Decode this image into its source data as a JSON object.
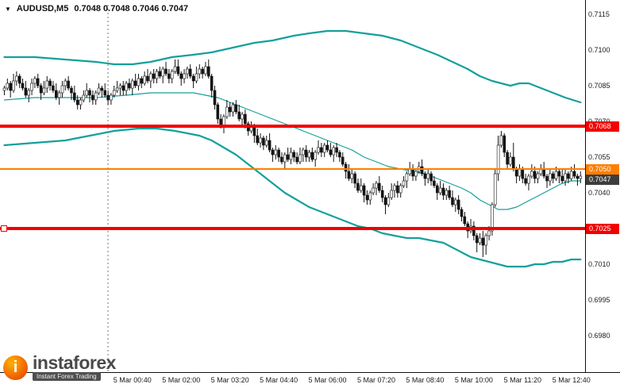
{
  "header": {
    "symbol": "AUDUSD,M5",
    "ohlc": "0.7048 0.7048 0.7046 0.7047"
  },
  "watermark": {
    "icon_letter": "i",
    "brand": "instaforex",
    "tagline": "Instant Forex Trading"
  },
  "chart_data": {
    "type": "candlestick",
    "title": "AUDUSD,M5",
    "timeframe_minutes": 5,
    "visible_price_range": [
      0.6965,
      0.7121
    ],
    "price_ticks": [
      "0.7115",
      "0.7100",
      "0.7085",
      "0.7070",
      "0.7055",
      "0.7040",
      "0.7025",
      "0.7010",
      "0.6995",
      "0.6980"
    ],
    "time_ticks": [
      {
        "label": "5 Mar 00:40",
        "i": 42
      },
      {
        "label": "5 Mar 02:00",
        "i": 58
      },
      {
        "label": "5 Mar 03:20",
        "i": 74
      },
      {
        "label": "5 Mar 04:40",
        "i": 90
      },
      {
        "label": "5 Mar 06:00",
        "i": 106
      },
      {
        "label": "5 Mar 07:20",
        "i": 122
      },
      {
        "label": "5 Mar 08:40",
        "i": 138
      },
      {
        "label": "5 Mar 10:00",
        "i": 154
      },
      {
        "label": "5 Mar 11:20",
        "i": 170
      },
      {
        "label": "5 Mar 12:40",
        "i": 186
      }
    ],
    "open_first": 0.7083,
    "closes": [
      0.7084,
      0.7086,
      0.7083,
      0.7087,
      0.7089,
      0.7086,
      0.7084,
      0.7081,
      0.7083,
      0.7086,
      0.7088,
      0.7085,
      0.7082,
      0.7084,
      0.7087,
      0.7085,
      0.7083,
      0.708,
      0.7082,
      0.7085,
      0.7087,
      0.7084,
      0.7082,
      0.7079,
      0.7077,
      0.7079,
      0.7081,
      0.7083,
      0.7081,
      0.7079,
      0.7082,
      0.7084,
      0.7083,
      0.7081,
      0.7079,
      0.7081,
      0.7083,
      0.7084,
      0.7085,
      0.7083,
      0.7086,
      0.7084,
      0.7087,
      0.7085,
      0.7088,
      0.7086,
      0.7089,
      0.7087,
      0.709,
      0.7088,
      0.7091,
      0.7089,
      0.7092,
      0.709,
      0.7088,
      0.7091,
      0.7093,
      0.709,
      0.7088,
      0.709,
      0.7092,
      0.7089,
      0.7087,
      0.709,
      0.7092,
      0.709,
      0.7093,
      0.7089,
      0.7083,
      0.7077,
      0.7071,
      0.7068,
      0.7072,
      0.7076,
      0.7074,
      0.7077,
      0.7074,
      0.7071,
      0.7073,
      0.7069,
      0.7066,
      0.7068,
      0.7064,
      0.7061,
      0.7063,
      0.706,
      0.7062,
      0.7058,
      0.7056,
      0.7058,
      0.7055,
      0.7053,
      0.7056,
      0.7054,
      0.7057,
      0.7055,
      0.7053,
      0.7056,
      0.7058,
      0.7055,
      0.7057,
      0.7054,
      0.7057,
      0.7059,
      0.7057,
      0.706,
      0.7058,
      0.7056,
      0.7059,
      0.7057,
      0.7055,
      0.7052,
      0.7049,
      0.7046,
      0.7048,
      0.7044,
      0.7041,
      0.7043,
      0.7039,
      0.7037,
      0.704,
      0.7042,
      0.7044,
      0.7041,
      0.7038,
      0.7035,
      0.7038,
      0.7041,
      0.7043,
      0.704,
      0.7043,
      0.7045,
      0.7048,
      0.705,
      0.7047,
      0.7049,
      0.7051,
      0.7048,
      0.7046,
      0.7048,
      0.7045,
      0.7043,
      0.704,
      0.7042,
      0.7039,
      0.7041,
      0.7038,
      0.7035,
      0.7037,
      0.7033,
      0.703,
      0.7027,
      0.7024,
      0.7026,
      0.7022,
      0.7019,
      0.7021,
      0.7018,
      0.7022,
      0.7024,
      0.7035,
      0.7048,
      0.706,
      0.7064,
      0.7057,
      0.7052,
      0.7055,
      0.705,
      0.7047,
      0.705,
      0.7046,
      0.7044,
      0.7047,
      0.7049,
      0.7046,
      0.7048,
      0.705,
      0.7047,
      0.7045,
      0.7048,
      0.7046,
      0.7049,
      0.7047,
      0.7045,
      0.7048,
      0.7046,
      0.7049,
      0.7047,
      0.7046,
      0.7047
    ],
    "wick_overrides": {
      "56": [
        0.7096,
        null
      ],
      "66": [
        0.7095,
        null
      ],
      "125": [
        null,
        0.7031
      ],
      "155": [
        null,
        0.7015
      ],
      "157": [
        null,
        0.7013
      ],
      "158": [
        null,
        0.7014
      ],
      "162": [
        0.7064,
        null
      ],
      "163": [
        0.7066,
        null
      ],
      "164": [
        0.7065,
        null
      ],
      "167": [
        0.7061,
        null
      ]
    },
    "bollinger": {
      "upper": [
        [
          0,
          0.7097
        ],
        [
          10,
          0.7097
        ],
        [
          20,
          0.7096
        ],
        [
          30,
          0.7095
        ],
        [
          36,
          0.7094
        ],
        [
          42,
          0.7094
        ],
        [
          48,
          0.7095
        ],
        [
          55,
          0.7097
        ],
        [
          62,
          0.7098
        ],
        [
          68,
          0.7099
        ],
        [
          75,
          0.7101
        ],
        [
          82,
          0.7103
        ],
        [
          88,
          0.7104
        ],
        [
          95,
          0.7106
        ],
        [
          100,
          0.7107
        ],
        [
          106,
          0.7108
        ],
        [
          112,
          0.7108
        ],
        [
          118,
          0.7107
        ],
        [
          124,
          0.7106
        ],
        [
          130,
          0.7104
        ],
        [
          136,
          0.7101
        ],
        [
          142,
          0.7098
        ],
        [
          147,
          0.7095
        ],
        [
          152,
          0.7092
        ],
        [
          156,
          0.7089
        ],
        [
          160,
          0.7087
        ],
        [
          163,
          0.7086
        ],
        [
          166,
          0.7085
        ],
        [
          169,
          0.7086
        ],
        [
          172,
          0.7086
        ],
        [
          176,
          0.7084
        ],
        [
          180,
          0.7082
        ],
        [
          184,
          0.708
        ],
        [
          189,
          0.7078
        ]
      ],
      "middle": [
        [
          0,
          0.7079
        ],
        [
          10,
          0.708
        ],
        [
          20,
          0.708
        ],
        [
          30,
          0.708
        ],
        [
          40,
          0.7081
        ],
        [
          48,
          0.7082
        ],
        [
          56,
          0.7082
        ],
        [
          62,
          0.7082
        ],
        [
          66,
          0.7081
        ],
        [
          70,
          0.708
        ],
        [
          74,
          0.7078
        ],
        [
          78,
          0.7076
        ],
        [
          82,
          0.7074
        ],
        [
          86,
          0.7072
        ],
        [
          90,
          0.707
        ],
        [
          94,
          0.7068
        ],
        [
          98,
          0.7066
        ],
        [
          102,
          0.7064
        ],
        [
          106,
          0.7062
        ],
        [
          110,
          0.706
        ],
        [
          114,
          0.7058
        ],
        [
          118,
          0.7055
        ],
        [
          122,
          0.7053
        ],
        [
          126,
          0.7051
        ],
        [
          130,
          0.705
        ],
        [
          134,
          0.7049
        ],
        [
          138,
          0.7048
        ],
        [
          142,
          0.7046
        ],
        [
          146,
          0.7044
        ],
        [
          150,
          0.7042
        ],
        [
          153,
          0.704
        ],
        [
          156,
          0.7037
        ],
        [
          159,
          0.7035
        ],
        [
          162,
          0.7033
        ],
        [
          165,
          0.7033
        ],
        [
          168,
          0.7034
        ],
        [
          171,
          0.7036
        ],
        [
          174,
          0.7038
        ],
        [
          177,
          0.704
        ],
        [
          180,
          0.7042
        ],
        [
          183,
          0.7044
        ],
        [
          186,
          0.7045
        ],
        [
          189,
          0.7045
        ]
      ],
      "lower": [
        [
          0,
          0.706
        ],
        [
          10,
          0.7061
        ],
        [
          20,
          0.7062
        ],
        [
          28,
          0.7064
        ],
        [
          36,
          0.7066
        ],
        [
          44,
          0.7067
        ],
        [
          50,
          0.7067
        ],
        [
          56,
          0.7066
        ],
        [
          60,
          0.7065
        ],
        [
          64,
          0.7064
        ],
        [
          68,
          0.7062
        ],
        [
          72,
          0.7059
        ],
        [
          76,
          0.7056
        ],
        [
          80,
          0.7052
        ],
        [
          84,
          0.7048
        ],
        [
          88,
          0.7044
        ],
        [
          92,
          0.704
        ],
        [
          96,
          0.7037
        ],
        [
          100,
          0.7034
        ],
        [
          104,
          0.7032
        ],
        [
          108,
          0.703
        ],
        [
          112,
          0.7028
        ],
        [
          116,
          0.7026
        ],
        [
          120,
          0.7025
        ],
        [
          124,
          0.7023
        ],
        [
          128,
          0.7022
        ],
        [
          132,
          0.7021
        ],
        [
          136,
          0.7021
        ],
        [
          140,
          0.702
        ],
        [
          144,
          0.7019
        ],
        [
          147,
          0.7017
        ],
        [
          150,
          0.7015
        ],
        [
          153,
          0.7013
        ],
        [
          156,
          0.7012
        ],
        [
          159,
          0.7011
        ],
        [
          162,
          0.701
        ],
        [
          165,
          0.7009
        ],
        [
          168,
          0.7009
        ],
        [
          171,
          0.7009
        ],
        [
          174,
          0.701
        ],
        [
          177,
          0.701
        ],
        [
          180,
          0.7011
        ],
        [
          183,
          0.7011
        ],
        [
          186,
          0.7012
        ],
        [
          189,
          0.7012
        ]
      ]
    },
    "hlines": [
      {
        "name": "resistance-line",
        "label": "0.7068",
        "price": 0.7068,
        "color": "#f20000",
        "width": 4
      },
      {
        "name": "current-ask-line",
        "label": "0.7050",
        "price": 0.705,
        "color": "#ff7e00",
        "width": 2
      },
      {
        "name": "support-line",
        "label": "0.7025",
        "price": 0.7025,
        "color": "#f20000",
        "width": 4,
        "anchor_marker": true
      }
    ],
    "bid_badge": {
      "label": "0.7047",
      "price": 0.7047,
      "color": "#3d3d3d"
    },
    "last_price": 0.7047,
    "day_separator_index": 34,
    "colors": {
      "band": "#14a09c",
      "candle": "#141414"
    }
  }
}
